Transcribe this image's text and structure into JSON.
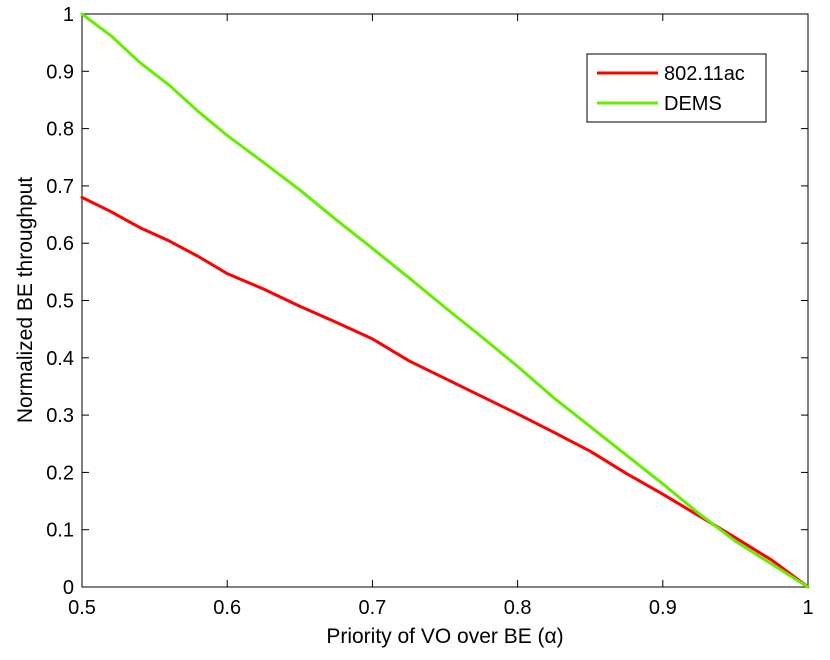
{
  "chart_data": {
    "type": "line",
    "xlabel": "Priority of VO over BE (α)",
    "ylabel": "Normalized BE throughput",
    "xlim": [
      0.5,
      1
    ],
    "ylim": [
      0,
      1
    ],
    "x_ticks": [
      0.5,
      0.6,
      0.7,
      0.8,
      0.9,
      1
    ],
    "x_tick_labels": [
      "0.5",
      "0.6",
      "0.7",
      "0.8",
      "0.9",
      "1"
    ],
    "y_ticks": [
      0,
      0.1,
      0.2,
      0.3,
      0.4,
      0.5,
      0.6,
      0.7,
      0.8,
      0.9,
      1
    ],
    "y_tick_labels": [
      "0",
      "0.1",
      "0.2",
      "0.3",
      "0.4",
      "0.5",
      "0.6",
      "0.7",
      "0.8",
      "0.9",
      "1"
    ],
    "grid": false,
    "legend_position": "top-right",
    "series": [
      {
        "name": "802.11ac",
        "color": "#ff0000",
        "x": [
          0.5,
          0.52,
          0.54,
          0.56,
          0.58,
          0.6,
          0.625,
          0.65,
          0.675,
          0.7,
          0.725,
          0.75,
          0.775,
          0.8,
          0.825,
          0.85,
          0.875,
          0.9,
          0.925,
          0.95,
          0.975,
          1.0
        ],
        "y": [
          0.68,
          0.655,
          0.627,
          0.604,
          0.577,
          0.547,
          0.52,
          0.49,
          0.462,
          0.433,
          0.395,
          0.364,
          0.333,
          0.302,
          0.27,
          0.237,
          0.198,
          0.162,
          0.124,
          0.086,
          0.047,
          0.0
        ]
      },
      {
        "name": "DEMS",
        "color": "#66ee00",
        "x": [
          0.5,
          0.52,
          0.54,
          0.56,
          0.58,
          0.6,
          0.625,
          0.65,
          0.675,
          0.7,
          0.725,
          0.75,
          0.775,
          0.8,
          0.825,
          0.85,
          0.875,
          0.9,
          0.925,
          0.95,
          0.975,
          1.0
        ],
        "y": [
          1.0,
          0.962,
          0.915,
          0.876,
          0.83,
          0.788,
          0.741,
          0.693,
          0.641,
          0.591,
          0.54,
          0.488,
          0.437,
          0.385,
          0.33,
          0.28,
          0.23,
          0.18,
          0.128,
          0.08,
          0.04,
          0.0
        ]
      }
    ]
  }
}
